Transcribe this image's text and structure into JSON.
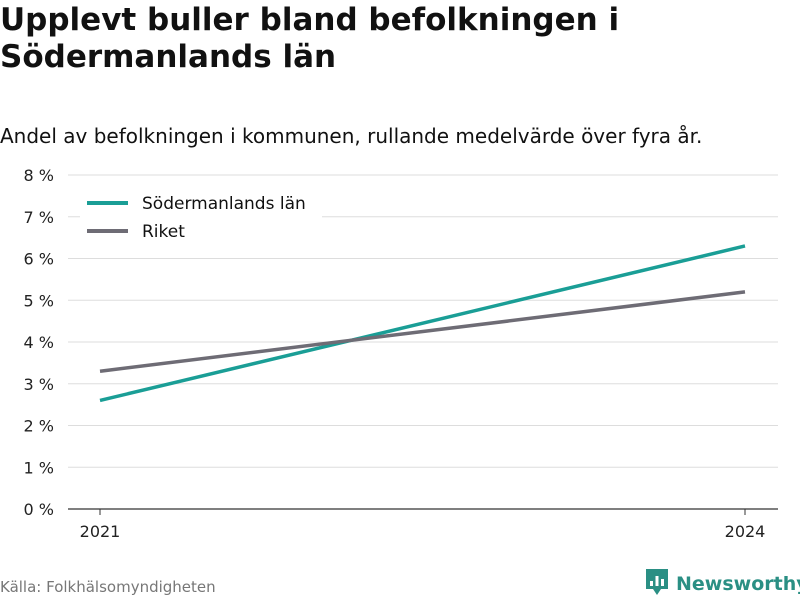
{
  "header": {
    "title": "Upplevt buller bland befolkningen i Södermanlands län",
    "subtitle": "Andel av befolkningen i kommunen, rullande medelvärde över fyra år."
  },
  "footer": {
    "source": "Källa: Folkhälsomyndigheten",
    "brand": "Newsworthy",
    "brand_color": "#2a8f84"
  },
  "chart_data": {
    "type": "line",
    "x": [
      "2021",
      "2024"
    ],
    "ylim": [
      0,
      8
    ],
    "yticks": [
      "0 %",
      "1 %",
      "2 %",
      "3 %",
      "4 %",
      "5 %",
      "6 %",
      "7 %",
      "8 %"
    ],
    "xticks": [
      "2021",
      "2024"
    ],
    "grid": true,
    "legend_position": "top-left",
    "series": [
      {
        "name": "Södermanlands län",
        "values": [
          2.6,
          6.3
        ],
        "color": "#1a9e96"
      },
      {
        "name": "Riket",
        "values": [
          3.3,
          5.2
        ],
        "color": "#6e6c75"
      }
    ]
  }
}
